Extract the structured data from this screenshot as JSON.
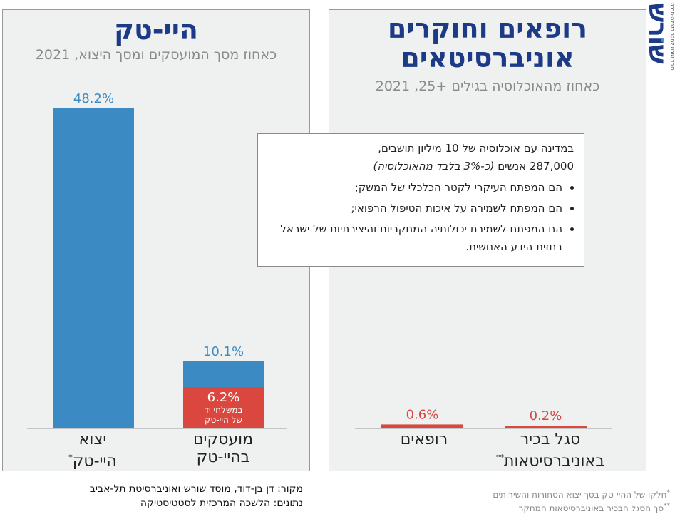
{
  "logo": {
    "name": "שורש",
    "tagline": "מוסד שורש לחקר כלכלה-חברה"
  },
  "left_panel": {
    "title": "היי-טק",
    "subtitle": "כאחוז מסך המועסקים ומסך היצוא, 2021"
  },
  "right_panel": {
    "title_line1": "רופאים וחוקרים",
    "title_line2": "אוניברסיטאים",
    "subtitle": "כאחוז מהאוכלוסיה בגילים +25, 2021"
  },
  "info_box": {
    "line1": "במדינה עם אוכלוסיה של 10 מיליון תושבים,",
    "line2_plain": "287,000 אנשים ",
    "line2_italic": "(כ-3% בלבד מהאוכלוסיה)",
    "bullets": [
      "הם המפתח העיקרי לקטר הכלכלי של המשק;",
      "הם המפתח לשמירה על איכות הטיפול הרפואי;",
      "הם המפתח לשמירת יכולותיה המחקריות והיצירתיות של ישראל בחזית הידע האנושית."
    ]
  },
  "chart_data": [
    {
      "type": "bar",
      "title": "היי-טק",
      "subtitle": "כאחוז מסך המועסקים ומסך היצוא, 2021",
      "categories": [
        {
          "line1": "יצוא",
          "line2": "היי-טק",
          "mark": "*"
        },
        {
          "line1": "מועסקים",
          "line2": "בהיי-טק",
          "mark": ""
        }
      ],
      "values": [
        48.2,
        10.1
      ],
      "value_labels": [
        "48.2%",
        "10.1%"
      ],
      "sub_segment": {
        "category_index": 1,
        "value": 6.2,
        "label": "6.2%",
        "note_line1": "במשלחי יד",
        "note_line2": "של היי-טק"
      },
      "ylim": [
        0,
        50
      ],
      "colors": {
        "bar": "#3c8ac3",
        "segment": "#d9473e",
        "label": "#3c8ac3"
      }
    },
    {
      "type": "bar",
      "title": "רופאים וחוקרים אוניברסיטאים",
      "subtitle": "כאחוז מהאוכלוסיה בגילים +25, 2021",
      "categories": [
        {
          "line1": "רופאים",
          "line2": "",
          "mark": ""
        },
        {
          "line1": "סגל בכיר",
          "line2": "באוניברסיטאות",
          "mark": "**"
        }
      ],
      "values": [
        0.6,
        0.2
      ],
      "value_labels": [
        "0.6%",
        "0.2%"
      ],
      "ylim": [
        0,
        50
      ],
      "colors": {
        "bar": "#d9473e",
        "label": "#d9473e"
      }
    }
  ],
  "source": {
    "line1": "מקור: דן בן-דוד, מוסד שורש ואוניברסיטת תל-אביב",
    "line2": "נתונים: הלשכה המרכזית לסטטיסטיקה"
  },
  "footnotes": {
    "line1": "חלקו של ההיי-טק בסך יצוא הסחורות והשירותים",
    "line2": "סך הסגל הבכיר באוניברסיטאות המחקר"
  }
}
